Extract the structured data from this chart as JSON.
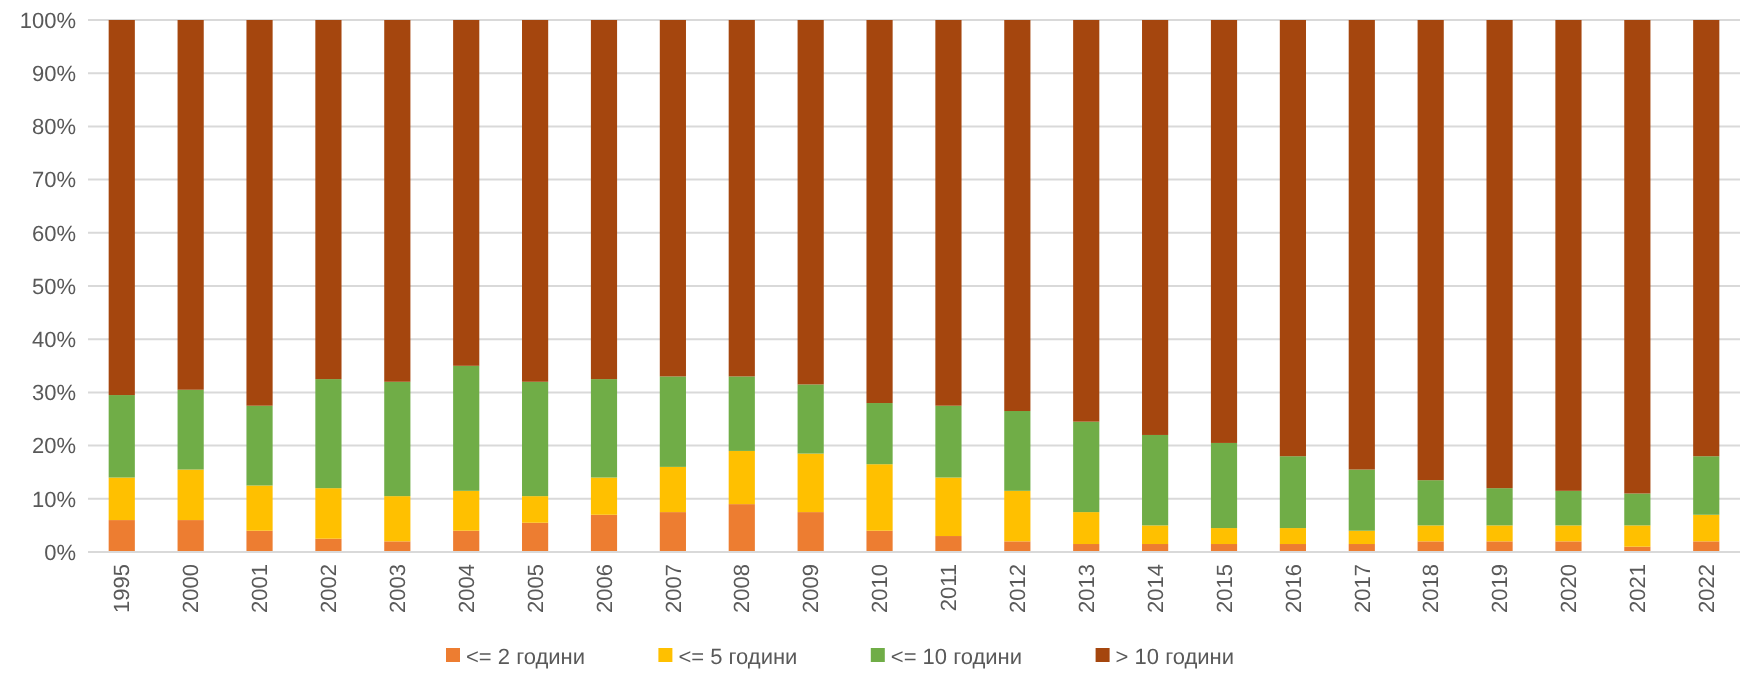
{
  "chart_data": {
    "type": "bar",
    "stacked": true,
    "categories": [
      "1995",
      "2000",
      "2001",
      "2002",
      "2003",
      "2004",
      "2005",
      "2006",
      "2007",
      "2008",
      "2009",
      "2010",
      "2011",
      "2012",
      "2013",
      "2014",
      "2015",
      "2016",
      "2017",
      "2018",
      "2019",
      "2020",
      "2021",
      "2022"
    ],
    "series": [
      {
        "name": "<= 2 години",
        "color": "#ed7d31",
        "values": [
          6,
          6,
          4,
          2.5,
          2,
          4,
          5.5,
          7,
          7.5,
          9,
          7.5,
          4,
          3,
          2,
          1.5,
          1.5,
          1.5,
          1.5,
          1.5,
          2,
          2,
          2,
          1,
          2
        ]
      },
      {
        "name": "<= 5 години",
        "color": "#ffc000",
        "values": [
          8,
          9.5,
          8.5,
          9.5,
          8.5,
          7.5,
          5,
          7,
          8.5,
          10,
          11,
          12.5,
          11,
          9.5,
          6,
          3.5,
          3,
          3,
          2.5,
          3,
          3,
          3,
          4,
          5
        ]
      },
      {
        "name": "<= 10 години",
        "color": "#70ad47",
        "values": [
          15.5,
          15,
          15,
          20.5,
          21.5,
          23.5,
          21.5,
          18.5,
          17,
          14,
          13,
          11.5,
          13.5,
          15,
          17,
          17,
          16,
          13.5,
          11.5,
          8.5,
          7,
          6.5,
          6,
          11
        ]
      },
      {
        "name": "> 10 години",
        "color": "#a5460e",
        "values": [
          70.5,
          69.5,
          72.5,
          67.5,
          68,
          65,
          68,
          67.5,
          67,
          67,
          68.5,
          72,
          72.5,
          73.5,
          75.5,
          78,
          79.5,
          82,
          84.5,
          86.5,
          88,
          88.5,
          89,
          82
        ]
      }
    ],
    "ylim": [
      0,
      100
    ],
    "yticks": [
      {
        "value": 0,
        "label": "0%"
      },
      {
        "value": 10,
        "label": "10%"
      },
      {
        "value": 20,
        "label": "20%"
      },
      {
        "value": 30,
        "label": "30%"
      },
      {
        "value": 40,
        "label": "40%"
      },
      {
        "value": 50,
        "label": "50%"
      },
      {
        "value": 60,
        "label": "60%"
      },
      {
        "value": 70,
        "label": "70%"
      },
      {
        "value": 80,
        "label": "80%"
      },
      {
        "value": 90,
        "label": "90%"
      },
      {
        "value": 100,
        "label": "100%"
      }
    ],
    "grid": "y",
    "legend": "bottom"
  }
}
